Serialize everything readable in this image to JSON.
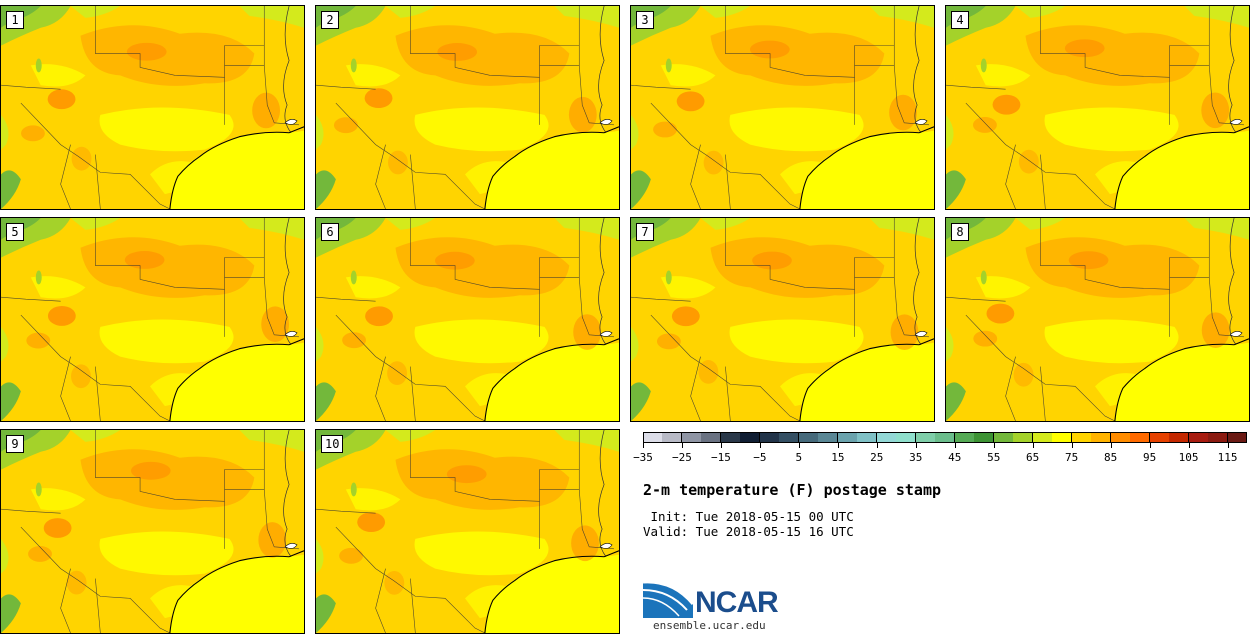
{
  "panels": [
    {
      "label": "1"
    },
    {
      "label": "2"
    },
    {
      "label": "3"
    },
    {
      "label": "4"
    },
    {
      "label": "5"
    },
    {
      "label": "6"
    },
    {
      "label": "7"
    },
    {
      "label": "8"
    },
    {
      "label": "9"
    },
    {
      "label": "10"
    }
  ],
  "colorbar": {
    "colors": [
      "#dcdde8",
      "#b8bac6",
      "#8f95a4",
      "#6a7282",
      "#2a3849",
      "#101e33",
      "#223449",
      "#344f63",
      "#466a7b",
      "#5a8795",
      "#6ba3ad",
      "#80c1c6",
      "#93d8d6",
      "#8fdfcc",
      "#7fcea9",
      "#6bbd8c",
      "#55aa55",
      "#3d9334",
      "#73b83b",
      "#a4d22a",
      "#d4ea1c",
      "#ffff00",
      "#ffd400",
      "#ffb300",
      "#ff8c00",
      "#ff6a00",
      "#e64100",
      "#c42800",
      "#a81c10",
      "#8b1a10",
      "#6b1a14"
    ],
    "ticks": [
      "−35",
      "−25",
      "−15",
      "−5",
      "5",
      "15",
      "25",
      "35",
      "45",
      "55",
      "65",
      "75",
      "85",
      "95",
      "105",
      "115"
    ]
  },
  "title": "2-m temperature (F) postage stamp",
  "init_text": " Init: Tue 2018-05-15 00 UTC",
  "valid_text": "Valid: Tue 2018-05-15 16 UTC",
  "logo": {
    "name": "NCAR",
    "url": "ensemble.ucar.edu"
  }
}
